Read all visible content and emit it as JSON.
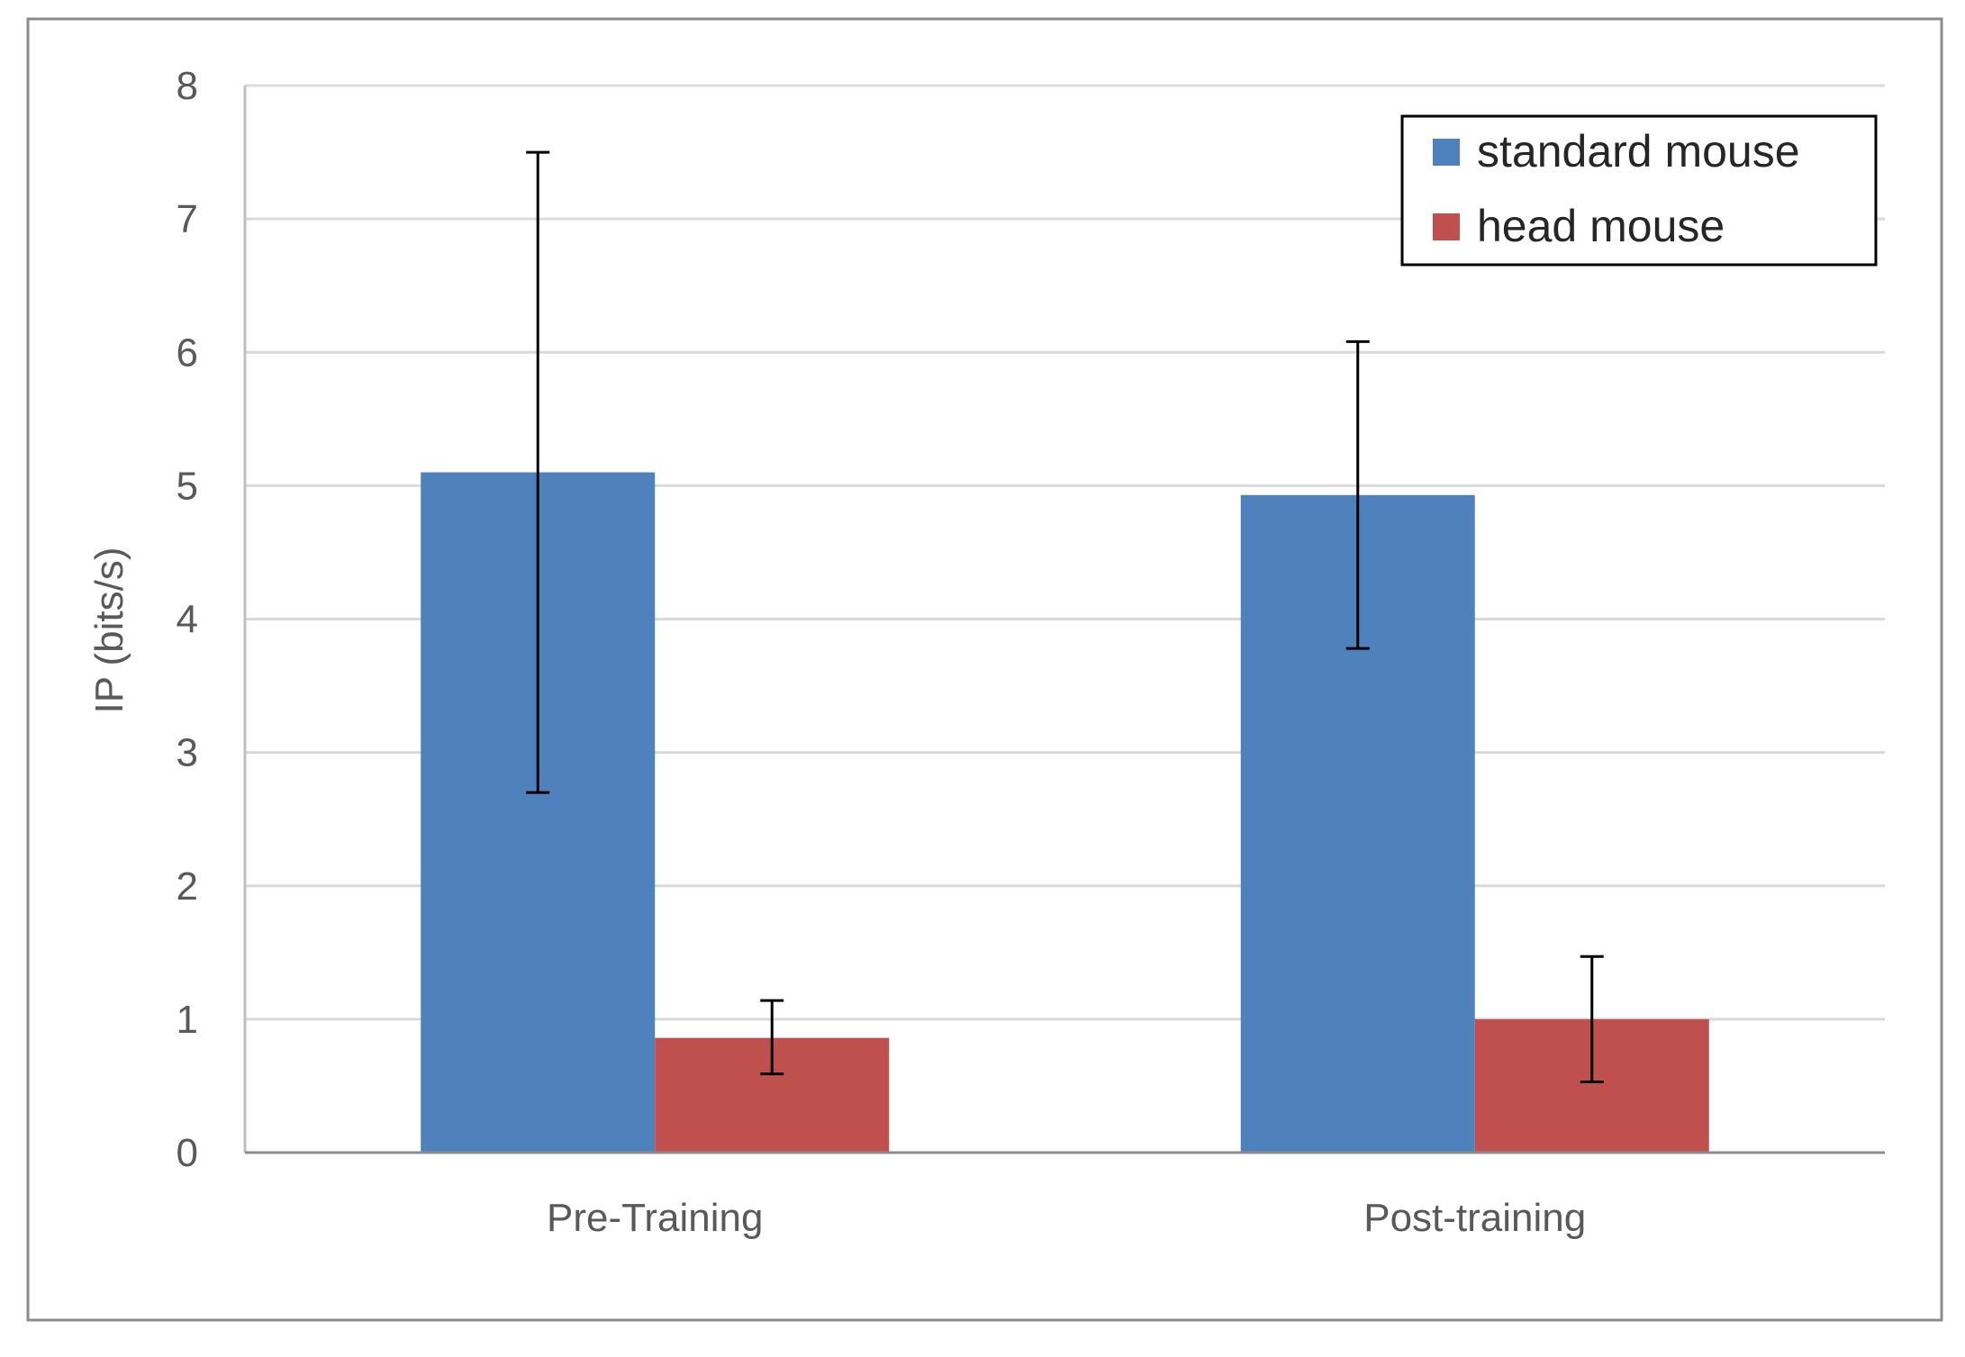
{
  "chart_data": {
    "type": "bar",
    "title": "",
    "xlabel": "",
    "ylabel": "IP (bits/s)",
    "ylim": [
      0,
      8
    ],
    "yticks": [
      "0",
      "1",
      "2",
      "3",
      "4",
      "5",
      "6",
      "7",
      "8"
    ],
    "grid": true,
    "legend_position": "top-right",
    "categories": [
      "Pre-Training",
      "Post-training"
    ],
    "series": [
      {
        "name": "standard mouse",
        "color": "#4f81bd",
        "values": [
          5.1,
          4.93
        ],
        "error_low": [
          2.7,
          3.78
        ],
        "error_high": [
          7.5,
          6.08
        ]
      },
      {
        "name": "head mouse",
        "color": "#c0504d",
        "values": [
          0.86,
          1.0
        ],
        "error_low": [
          0.59,
          0.53
        ],
        "error_high": [
          1.14,
          1.47
        ]
      }
    ]
  }
}
